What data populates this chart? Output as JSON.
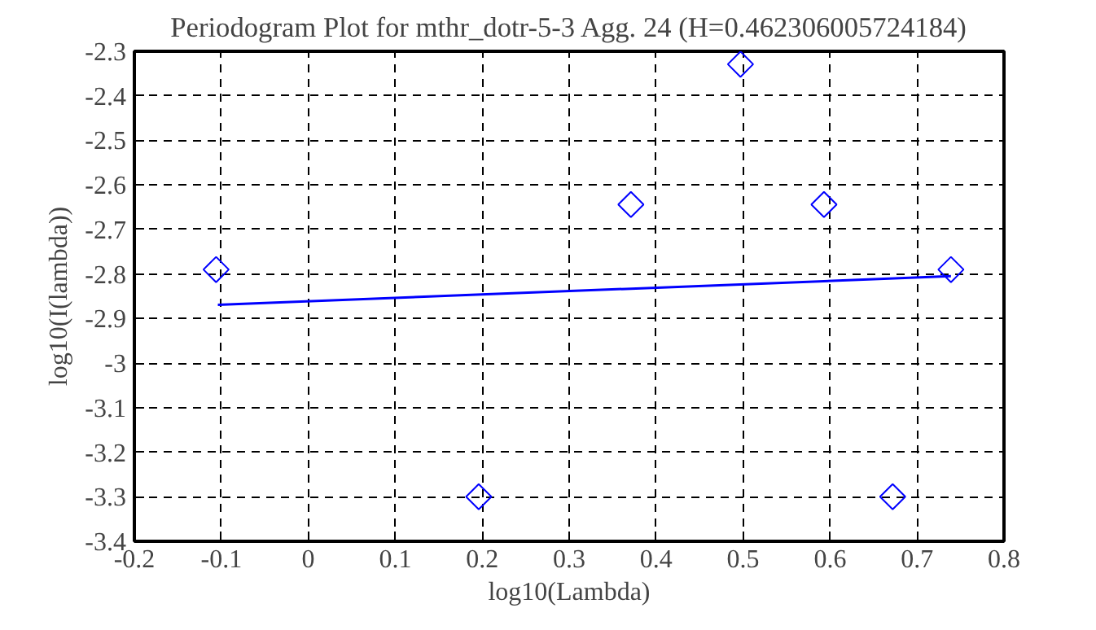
{
  "chart_data": {
    "type": "scatter",
    "title": "Periodogram Plot for mthr_dotr-5-3 Agg. 24 (H=0.462306005724184)",
    "xlabel": "log10(Lambda)",
    "ylabel": "log10(I(lambda))",
    "x": [
      -0.106,
      0.196,
      0.371,
      0.497,
      0.593,
      0.672,
      0.739
    ],
    "series": [
      {
        "color": "#0000ff",
        "marker": "diamond",
        "values": [
          -2.79,
          -3.3,
          -2.644,
          -2.329,
          -2.644,
          -3.3,
          -2.79
        ]
      },
      {
        "type": "line",
        "color": "#0000ff",
        "line_style": "solid",
        "marker": "none",
        "x": [
          -0.104,
          0.739
        ],
        "values": [
          -2.869,
          -2.805
        ]
      }
    ],
    "xlim": [
      -0.2,
      0.8
    ],
    "ylim": [
      -3.4,
      -2.3
    ],
    "xticks": [
      -0.2,
      -0.1,
      0,
      0.1,
      0.2,
      0.3,
      0.4,
      0.5,
      0.6,
      0.7,
      0.8
    ],
    "yticks": [
      -2.3,
      -2.4,
      -2.5,
      -2.6,
      -2.7,
      -2.8,
      -2.9,
      -3,
      -3.1,
      -3.2,
      -3.3,
      -3.4
    ],
    "grid": true
  }
}
